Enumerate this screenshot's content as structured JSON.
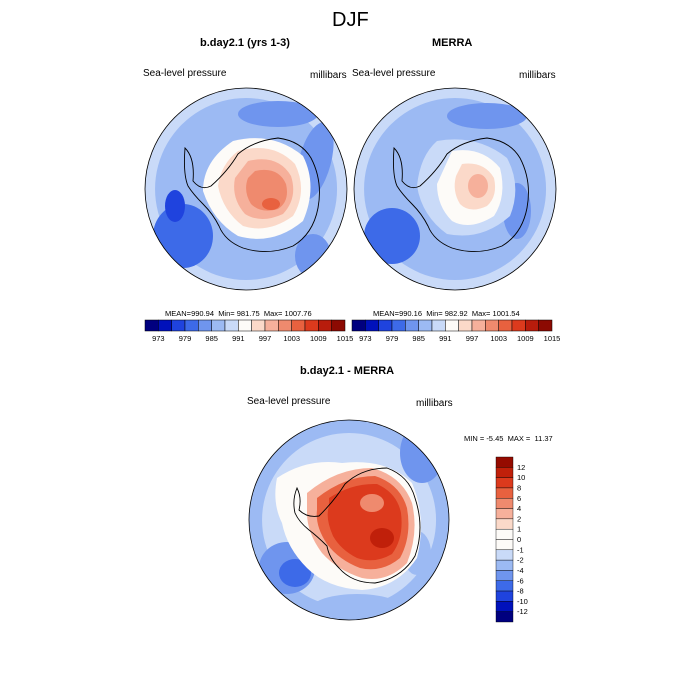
{
  "figure": {
    "title": "DJF"
  },
  "panels": [
    {
      "title": "b.day2.1 (yrs 1-3)",
      "variable": "Sea-level pressure",
      "units": "millibars",
      "stats": {
        "mean_label": "MEAN=",
        "mean": "990.94",
        "min_label": "Min=",
        "min": "981.75",
        "max_label": "Max=",
        "max": "1007.76"
      }
    },
    {
      "title": "MERRA",
      "variable": "Sea-level pressure",
      "units": "millibars",
      "stats": {
        "mean_label": "MEAN=",
        "mean": "990.16",
        "min_label": "Min=",
        "min": "982.92",
        "max_label": "Max=",
        "max": "1001.54"
      }
    },
    {
      "title": "b.day2.1 - MERRA",
      "variable": "Sea-level pressure",
      "units": "millibars",
      "stats": {
        "min_label": "MIN =",
        "min": "-5.45",
        "max_label": "MAX =",
        "max": "11.37"
      }
    }
  ],
  "colorbar_abs": {
    "labels": [
      "973",
      "979",
      "985",
      "991",
      "997",
      "1003",
      "1009",
      "1015"
    ],
    "colors": [
      "#00007f",
      "#0011bb",
      "#1f43de",
      "#3d6ae8",
      "#6f95ee",
      "#9cbaf3",
      "#c9daf8",
      "#fdfbf8",
      "#fbd9c9",
      "#f6b09b",
      "#ef8a6e",
      "#e8613f",
      "#dc3a1d",
      "#b81c0c",
      "#8c0a02"
    ]
  },
  "colorbar_diff": {
    "labels": [
      "12",
      "10",
      "8",
      "6",
      "4",
      "2",
      "1",
      "0",
      "-1",
      "-2",
      "-4",
      "-6",
      "-8",
      "-10",
      "-12"
    ],
    "colors": [
      "#950b00",
      "#c0200a",
      "#dc3a1d",
      "#e8613f",
      "#ef8a6e",
      "#f6b09b",
      "#fbd9c9",
      "#fdfbf8",
      "#fdfbf8",
      "#c9daf8",
      "#9cbaf3",
      "#6f95ee",
      "#3d6ae8",
      "#1f43de",
      "#0011bb",
      "#00007f"
    ]
  }
}
